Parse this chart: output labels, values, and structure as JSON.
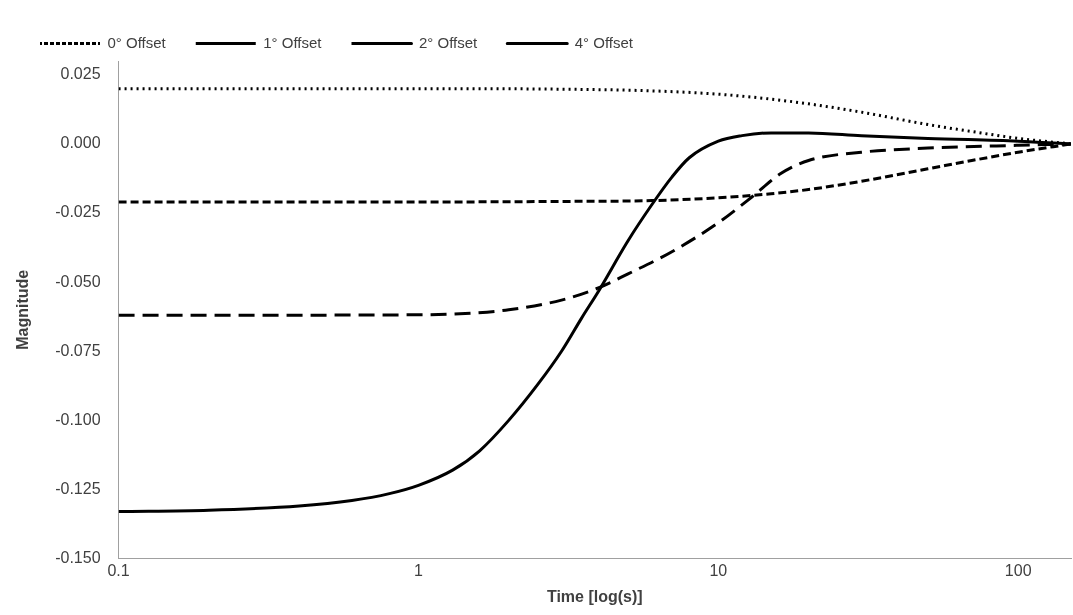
{
  "chart_data": {
    "type": "line",
    "xlabel": "Time [log(s)]",
    "ylabel": "Magnitude",
    "log": "x",
    "legend": "top",
    "grid": false,
    "marker": "none",
    "xlim": [
      0.1,
      150
    ],
    "xticks": [
      0.1,
      1,
      10,
      100
    ],
    "ylim": [
      -0.15,
      0.03
    ],
    "yticks": [
      {
        "value": 0.025,
        "label": "0.025"
      },
      {
        "value": 0,
        "label": "0.000"
      },
      {
        "value": -0.025,
        "label": "-0.025"
      },
      {
        "value": -0.05,
        "label": "-0.050"
      },
      {
        "value": -0.075,
        "label": "-0.075"
      },
      {
        "value": -0.1,
        "label": "-0.100"
      },
      {
        "value": -0.125,
        "label": "-0.125"
      },
      {
        "value": -0.15,
        "label": "-0.150"
      }
    ],
    "series": [
      {
        "name": "0° Offset",
        "color": "#000000",
        "line_style": "dotted",
        "x": [
          0.1,
          1,
          3,
          6,
          10,
          15,
          20,
          30,
          50,
          70,
          100,
          150
        ],
        "values": [
          0.02,
          0.02,
          0.0198,
          0.0192,
          0.018,
          0.0162,
          0.0145,
          0.0115,
          0.007,
          0.0045,
          0.002,
          0
        ]
      },
      {
        "name": "1° Offset",
        "color": "#000000",
        "line_style": "dashed",
        "x": [
          0.1,
          1,
          3,
          6,
          10,
          15,
          20,
          30,
          50,
          70,
          100,
          150
        ],
        "values": [
          -0.021,
          -0.021,
          -0.0208,
          -0.0205,
          -0.0195,
          -0.018,
          -0.0165,
          -0.0135,
          -0.009,
          -0.006,
          -0.003,
          0
        ]
      },
      {
        "name": "2° Offset",
        "color": "#000000",
        "line_style": "dashed",
        "x": [
          0.1,
          1,
          1.5,
          2,
          3,
          4,
          5,
          7,
          10,
          13,
          16,
          20,
          30,
          50,
          100,
          150
        ],
        "values": [
          -0.062,
          -0.0618,
          -0.0612,
          -0.06,
          -0.0565,
          -0.052,
          -0.047,
          -0.039,
          -0.0285,
          -0.019,
          -0.011,
          -0.006,
          -0.003,
          -0.0015,
          -0.0005,
          0
        ]
      },
      {
        "name": "4° Offset",
        "color": "#000000",
        "line_style": "solid",
        "x": [
          0.1,
          0.2,
          0.4,
          0.6,
          0.8,
          1,
          1.3,
          1.6,
          2,
          2.5,
          3,
          3.5,
          4,
          5,
          6,
          7,
          8,
          10,
          12,
          15,
          20,
          30,
          50,
          100,
          150
        ],
        "values": [
          -0.133,
          -0.1325,
          -0.131,
          -0.129,
          -0.1265,
          -0.1235,
          -0.118,
          -0.111,
          -0.1,
          -0.087,
          -0.075,
          -0.063,
          -0.053,
          -0.035,
          -0.022,
          -0.012,
          -0.005,
          0.001,
          0.003,
          0.004,
          0.004,
          0.003,
          0.002,
          0.001,
          0
        ]
      }
    ]
  }
}
